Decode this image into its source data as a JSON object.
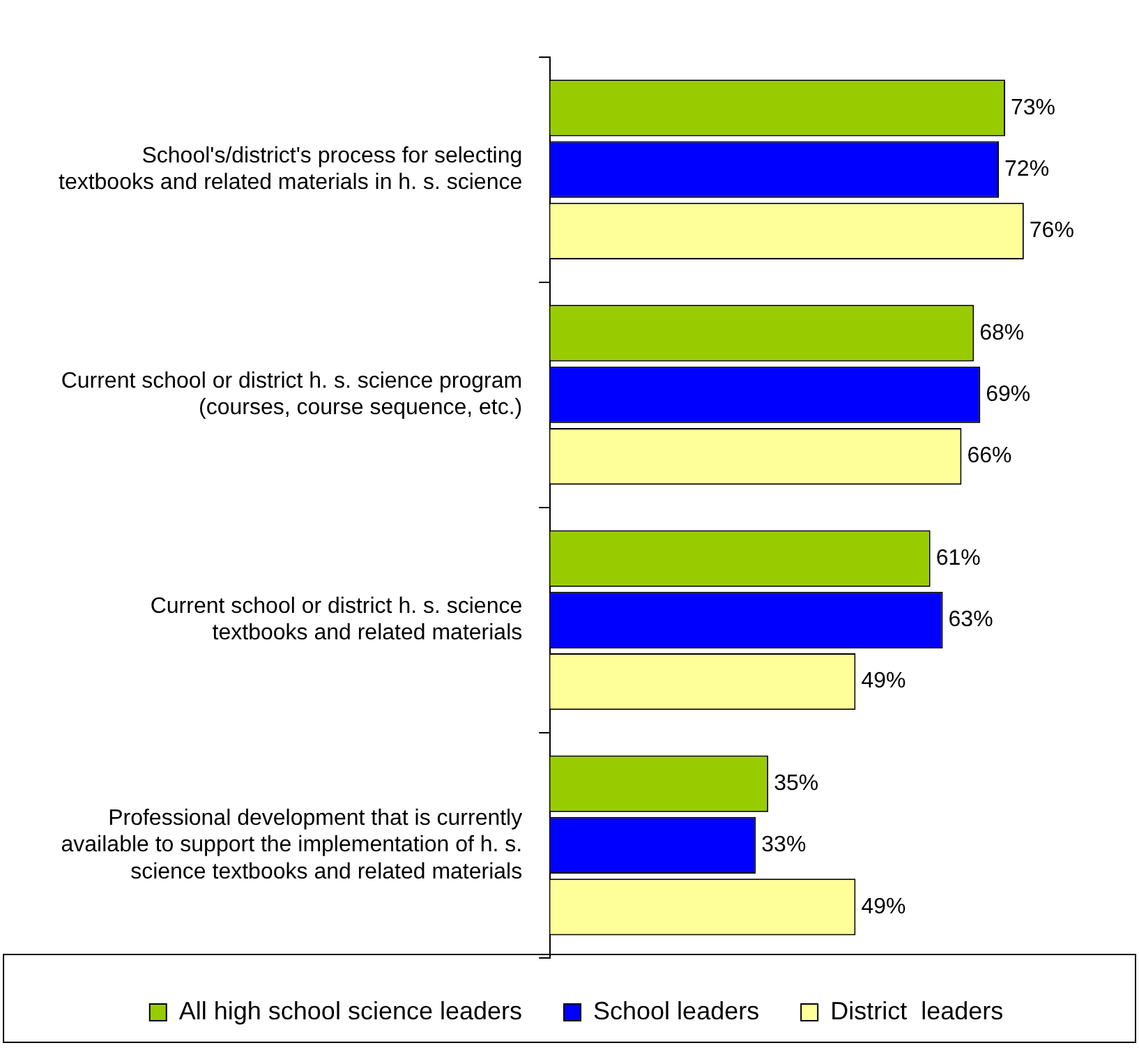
{
  "chart_data": {
    "type": "bar",
    "orientation": "horizontal",
    "categories": [
      "School's/district's process for selecting textbooks and related materials in h. s. science",
      "Current school or district h. s. science program (courses, course sequence, etc.)",
      "Current school or district h. s. science textbooks and related materials",
      "Professional development that is currently available to support the implementation of h. s. science textbooks and related materials"
    ],
    "series": [
      {
        "name": "All high school science leaders",
        "color": "#99cc00",
        "values": [
          73,
          68,
          61,
          35
        ],
        "value_labels": [
          "73%",
          "68%",
          "61%",
          "35%"
        ]
      },
      {
        "name": "School leaders",
        "color": "#0000ff",
        "values": [
          72,
          69,
          63,
          33
        ],
        "value_labels": [
          "72%",
          "69%",
          "63%",
          "33%"
        ]
      },
      {
        "name": "District  leaders",
        "color": "#ffff99",
        "values": [
          76,
          66,
          49,
          49
        ],
        "value_labels": [
          "76%",
          "66%",
          "49%",
          "49%"
        ]
      }
    ],
    "legend": "bottom"
  }
}
